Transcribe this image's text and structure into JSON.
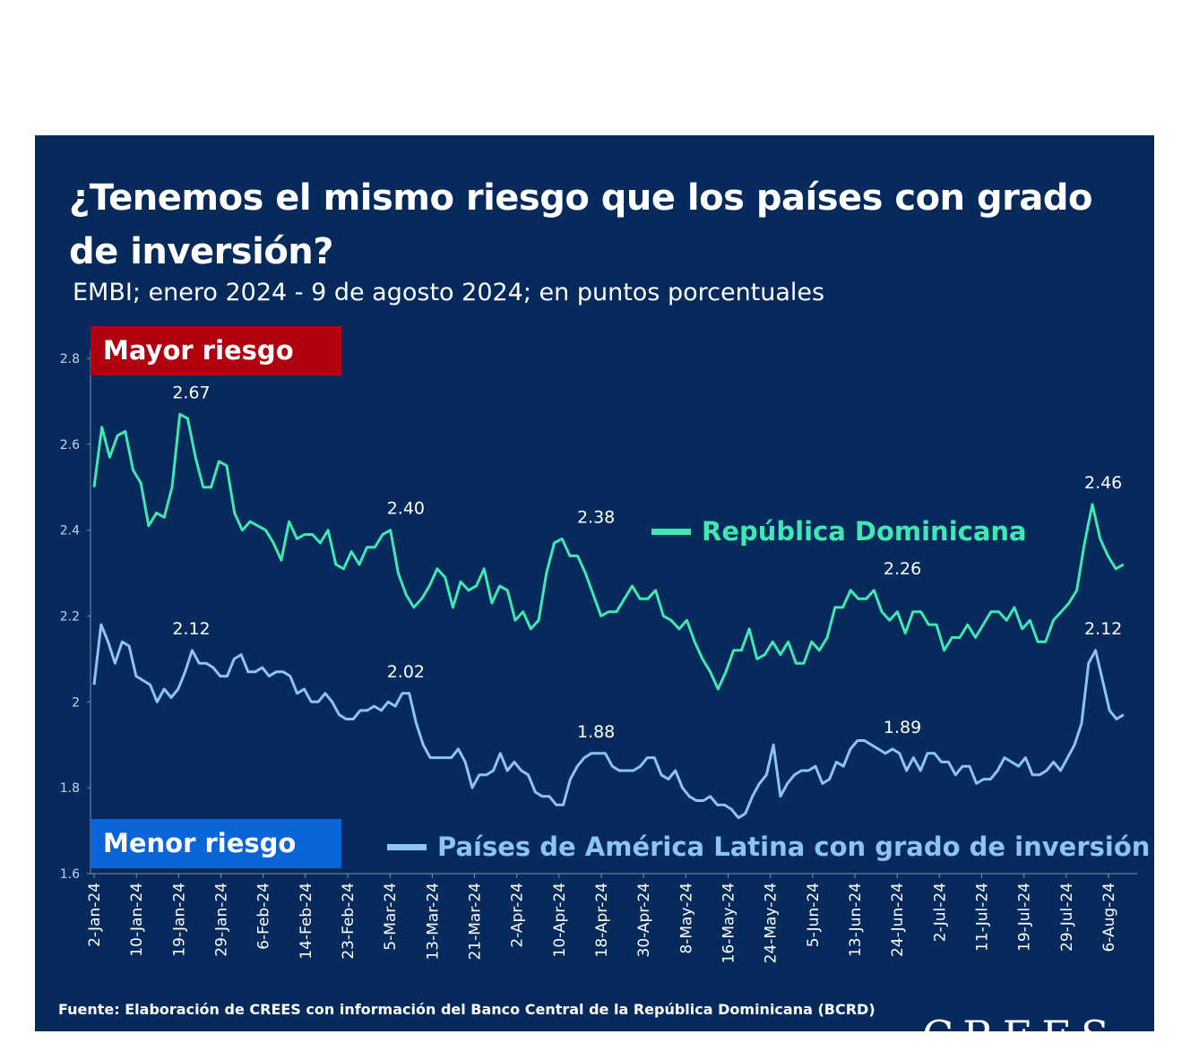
{
  "header": {
    "title": "¿Tenemos el mismo riesgo que los países con grado de inversión?",
    "subtitle": "EMBI; enero 2024 - 9 de agosto 2024; en puntos porcentuales"
  },
  "tags": {
    "high": "Mayor riesgo",
    "low": "Menor riesgo"
  },
  "footer": {
    "source": "Fuente: Elaboración de CREES con información del Banco Central de la República Dominicana (BCRD)",
    "logo": "CREES"
  },
  "colors": {
    "background": "#062a5c",
    "rd": "#3fe8b2",
    "latam": "#8cc4f4",
    "high_tag": "#b3000f",
    "low_tag": "#0a66d8"
  },
  "chart_data": {
    "type": "line",
    "title": "¿Tenemos el mismo riesgo que los países con grado de inversión?",
    "ylim": [
      1.6,
      2.8
    ],
    "yticks": [
      "1.6",
      "1.8",
      "2",
      "2.2",
      "2.4",
      "2.6",
      "2.8"
    ],
    "xticks": [
      "2-Jan-24",
      "10-Jan-24",
      "19-Jan-24",
      "29-Jan-24",
      "6-Feb-24",
      "14-Feb-24",
      "23-Feb-24",
      "5-Mar-24",
      "13-Mar-24",
      "21-Mar-24",
      "2-Apr-24",
      "10-Apr-24",
      "18-Apr-24",
      "30-Apr-24",
      "8-May-24",
      "16-May-24",
      "24-May-24",
      "5-Jun-24",
      "13-Jun-24",
      "24-Jun-24",
      "2-Jul-24",
      "11-Jul-24",
      "19-Jul-24",
      "29-Jul-24",
      "6-Aug-24"
    ],
    "grid": false,
    "series": [
      {
        "name": "República Dominicana",
        "values": [
          2.5,
          2.64,
          2.57,
          2.62,
          2.63,
          2.54,
          2.51,
          2.41,
          2.44,
          2.43,
          2.5,
          2.67,
          2.66,
          2.57,
          2.5,
          2.5,
          2.56,
          2.55,
          2.44,
          2.4,
          2.42,
          2.41,
          2.4,
          2.37,
          2.33,
          2.42,
          2.38,
          2.39,
          2.39,
          2.37,
          2.4,
          2.32,
          2.31,
          2.35,
          2.32,
          2.36,
          2.36,
          2.39,
          2.4,
          2.3,
          2.25,
          2.22,
          2.24,
          2.27,
          2.31,
          2.29,
          2.22,
          2.28,
          2.26,
          2.27,
          2.31,
          2.23,
          2.27,
          2.26,
          2.19,
          2.21,
          2.17,
          2.19,
          2.3,
          2.37,
          2.38,
          2.34,
          2.34,
          2.3,
          2.25,
          2.2,
          2.21,
          2.21,
          2.24,
          2.27,
          2.24,
          2.24,
          2.26,
          2.2,
          2.19,
          2.17,
          2.19,
          2.14,
          2.1,
          2.07,
          2.03,
          2.07,
          2.12,
          2.12,
          2.17,
          2.1,
          2.11,
          2.14,
          2.11,
          2.14,
          2.09,
          2.09,
          2.14,
          2.12,
          2.15,
          2.22,
          2.22,
          2.26,
          2.24,
          2.24,
          2.26,
          2.21,
          2.19,
          2.21,
          2.16,
          2.21,
          2.21,
          2.18,
          2.18,
          2.12,
          2.15,
          2.15,
          2.18,
          2.15,
          2.18,
          2.21,
          2.21,
          2.19,
          2.22,
          2.17,
          2.19,
          2.14,
          2.14,
          2.19,
          2.21,
          2.23,
          2.26,
          2.37,
          2.46,
          2.38,
          2.34,
          2.31,
          2.32
        ]
      },
      {
        "name": "Países de América Latina con grado de inversión",
        "values": [
          2.04,
          2.18,
          2.14,
          2.09,
          2.14,
          2.13,
          2.06,
          2.05,
          2.04,
          2.0,
          2.03,
          2.01,
          2.03,
          2.07,
          2.12,
          2.09,
          2.09,
          2.08,
          2.06,
          2.06,
          2.1,
          2.11,
          2.07,
          2.07,
          2.08,
          2.06,
          2.07,
          2.07,
          2.06,
          2.02,
          2.03,
          2.0,
          2.0,
          2.02,
          2.0,
          1.97,
          1.96,
          1.96,
          1.98,
          1.98,
          1.99,
          1.98,
          2.0,
          1.99,
          2.02,
          2.02,
          1.95,
          1.9,
          1.87,
          1.87,
          1.87,
          1.87,
          1.89,
          1.86,
          1.8,
          1.83,
          1.83,
          1.84,
          1.88,
          1.84,
          1.86,
          1.84,
          1.83,
          1.79,
          1.78,
          1.78,
          1.76,
          1.76,
          1.82,
          1.85,
          1.87,
          1.88,
          1.88,
          1.88,
          1.85,
          1.84,
          1.84,
          1.84,
          1.85,
          1.87,
          1.87,
          1.83,
          1.82,
          1.84,
          1.8,
          1.78,
          1.77,
          1.77,
          1.78,
          1.76,
          1.76,
          1.75,
          1.73,
          1.74,
          1.78,
          1.81,
          1.83,
          1.9,
          1.78,
          1.81,
          1.83,
          1.84,
          1.84,
          1.85,
          1.81,
          1.82,
          1.86,
          1.85,
          1.89,
          1.91,
          1.91,
          1.9,
          1.89,
          1.88,
          1.89,
          1.88,
          1.84,
          1.87,
          1.84,
          1.88,
          1.88,
          1.86,
          1.86,
          1.83,
          1.85,
          1.85,
          1.81,
          1.82,
          1.82,
          1.84,
          1.87,
          1.86,
          1.85,
          1.87,
          1.83,
          1.83,
          1.84,
          1.86,
          1.84,
          1.87,
          1.9,
          1.95,
          2.09,
          2.12,
          2.05,
          1.98,
          1.96,
          1.97
        ]
      }
    ],
    "annotations": [
      {
        "series": 0,
        "text": "2.67",
        "value": 2.67,
        "date": "22-Jan"
      },
      {
        "series": 0,
        "text": "2.40",
        "value": 2.4,
        "date": "8-Mar"
      },
      {
        "series": 0,
        "text": "2.38",
        "value": 2.38,
        "date": "17-Apr"
      },
      {
        "series": 0,
        "text": "2.26",
        "value": 2.26,
        "date": "25-Jun"
      },
      {
        "series": 0,
        "text": "2.46",
        "value": 2.46,
        "date": "5-Aug"
      },
      {
        "series": 1,
        "text": "2.12",
        "value": 2.12,
        "date": "22-Jan"
      },
      {
        "series": 1,
        "text": "2.02",
        "value": 2.02,
        "date": "8-Mar"
      },
      {
        "series": 1,
        "text": "1.88",
        "value": 1.88,
        "date": "17-Apr"
      },
      {
        "series": 1,
        "text": "1.89",
        "value": 1.89,
        "date": "25-Jun"
      },
      {
        "series": 1,
        "text": "2.12",
        "value": 2.12,
        "date": "5-Aug"
      }
    ]
  }
}
